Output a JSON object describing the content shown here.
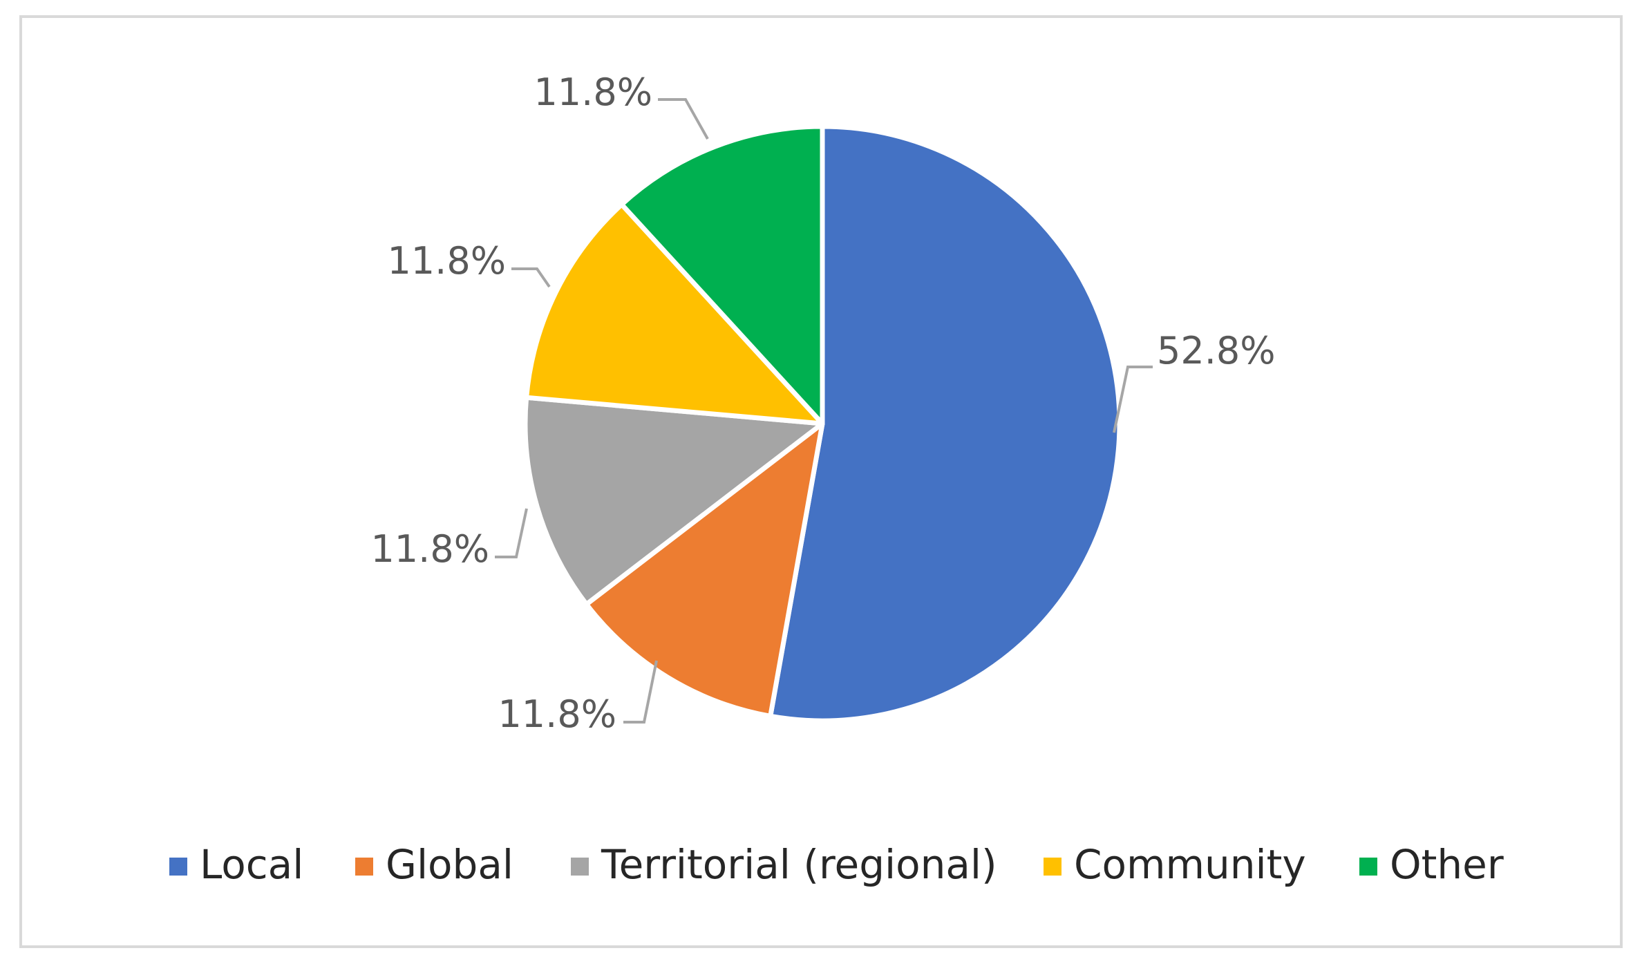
{
  "chart_data": {
    "type": "pie",
    "categories": [
      "Local",
      "Global",
      "Territorial (regional)",
      "Community",
      "Other"
    ],
    "values": [
      52.8,
      11.8,
      11.8,
      11.8,
      11.8
    ],
    "data_labels": [
      "52.8%",
      "11.8%",
      "11.8%",
      "11.8%",
      "11.8%"
    ],
    "colors": [
      "#4472C4",
      "#ED7D31",
      "#A5A5A5",
      "#FFC000",
      "#00B050"
    ],
    "start_angle_deg": 0,
    "direction": "clockwise",
    "legend_position": "bottom",
    "title": ""
  }
}
